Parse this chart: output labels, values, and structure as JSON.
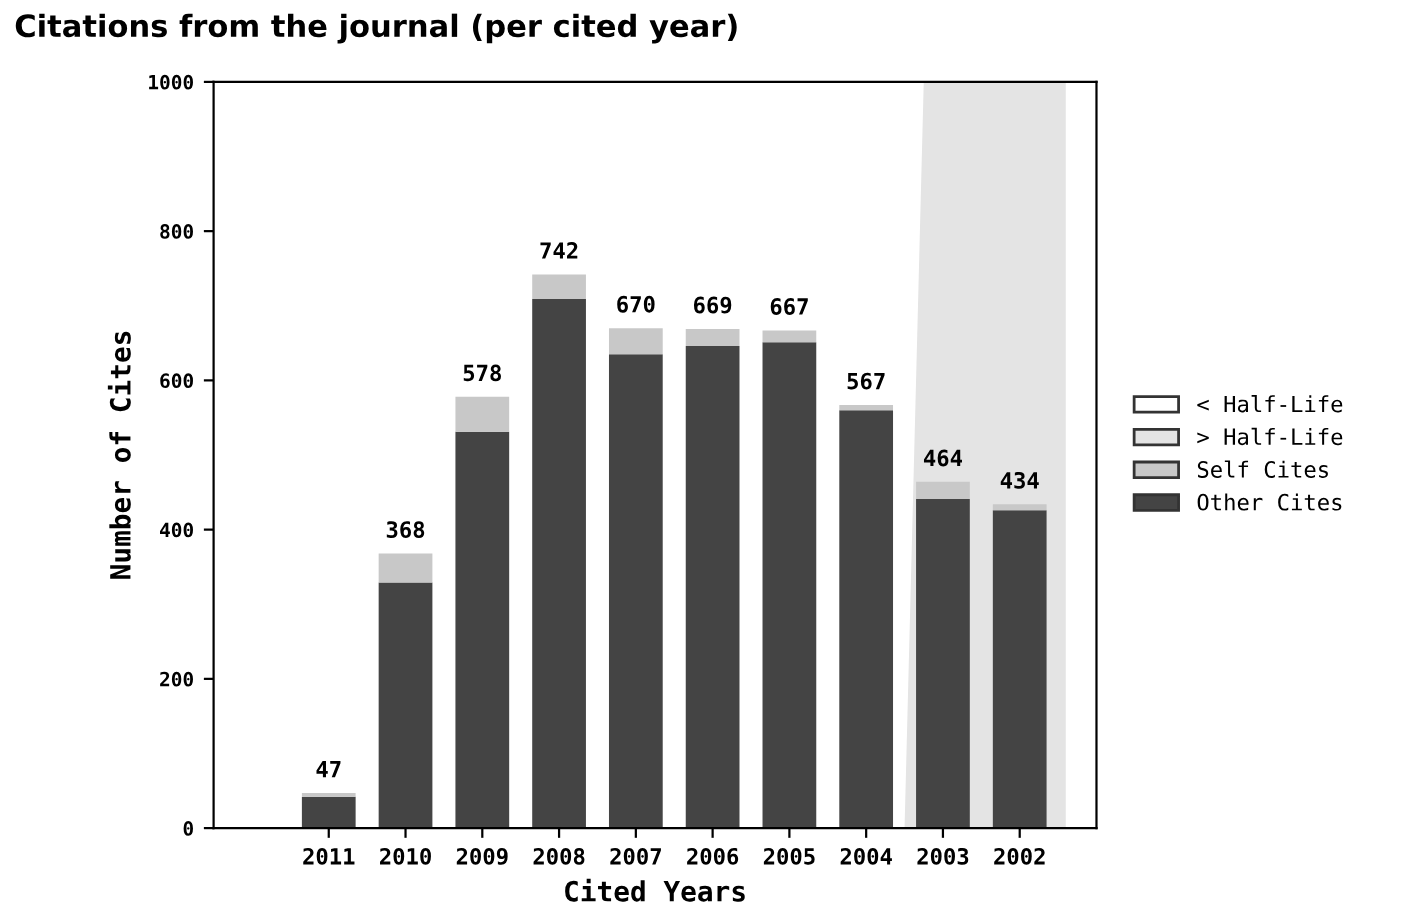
{
  "chart_data": {
    "type": "bar",
    "title": "Citations from the journal (per cited year)",
    "xlabel": "Cited Years",
    "ylabel": "Number of Cites",
    "categories": [
      "2011",
      "2010",
      "2009",
      "2008",
      "2007",
      "2006",
      "2005",
      "2004",
      "2003",
      "2002"
    ],
    "stacked": true,
    "series": [
      {
        "name": "Other Cites",
        "color": "#444444",
        "values": [
          42,
          329,
          531,
          709,
          635,
          646,
          651,
          560,
          441,
          426
        ]
      },
      {
        "name": "Self Cites",
        "color": "#c8c8c8",
        "values": [
          5,
          39,
          47,
          33,
          35,
          23,
          16,
          7,
          23,
          8
        ]
      }
    ],
    "totals": [
      "47",
      "368",
      "578",
      "742",
      "670",
      "669",
      "667",
      "567",
      "464",
      "434"
    ],
    "annotations": [
      "< Half-Life",
      "> Half-Life"
    ],
    "ylim": [
      0,
      1000
    ],
    "yticks": [
      0,
      200,
      400,
      600,
      800,
      1000
    ],
    "grid": false,
    "legend": "right"
  }
}
